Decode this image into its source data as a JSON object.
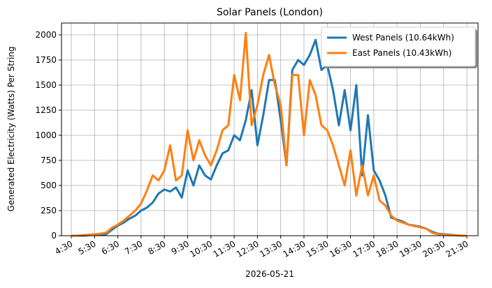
{
  "chart_data": {
    "type": "line",
    "title": "Solar Panels (London)",
    "xlabel": "2026-05-21",
    "ylabel": "Generated Electricity (Watts) Per String",
    "x": [
      4.5,
      4.75,
      5,
      5.25,
      5.5,
      5.75,
      6,
      6.25,
      6.5,
      6.75,
      7,
      7.25,
      7.5,
      7.75,
      8,
      8.25,
      8.5,
      8.75,
      9,
      9.25,
      9.5,
      9.75,
      10,
      10.25,
      10.5,
      10.75,
      11,
      11.25,
      11.5,
      11.75,
      12,
      12.25,
      12.5,
      12.75,
      13,
      13.25,
      13.5,
      13.75,
      14,
      14.25,
      14.5,
      14.75,
      15,
      15.25,
      15.5,
      15.75,
      16,
      16.25,
      16.5,
      16.75,
      17,
      17.25,
      17.5,
      17.75,
      18,
      18.25,
      18.5,
      18.75,
      19,
      19.25,
      19.5,
      19.75,
      20,
      20.25,
      20.5,
      20.75,
      21,
      21.25,
      21.5
    ],
    "series": [
      {
        "name": "West Panels (10.64kWh)",
        "color": "#1f77b4",
        "values": [
          0,
          0,
          0,
          5,
          10,
          10,
          15,
          60,
          100,
          130,
          170,
          200,
          250,
          280,
          330,
          420,
          460,
          440,
          480,
          380,
          650,
          500,
          700,
          600,
          560,
          700,
          820,
          850,
          1000,
          950,
          1150,
          1450,
          900,
          1200,
          1550,
          1550,
          1150,
          700,
          1650,
          1750,
          1700,
          1800,
          1950,
          1650,
          1700,
          1450,
          1100,
          1450,
          1050,
          1500,
          600,
          1200,
          650,
          550,
          400,
          180,
          160,
          140,
          110,
          100,
          90,
          70,
          40,
          20,
          15,
          10,
          5,
          0,
          0
        ]
      },
      {
        "name": "East Panels (10.43kWh)",
        "color": "#ff7f0e",
        "values": [
          0,
          0,
          5,
          10,
          15,
          20,
          30,
          80,
          110,
          150,
          200,
          250,
          320,
          450,
          600,
          550,
          650,
          900,
          550,
          600,
          1050,
          750,
          950,
          800,
          700,
          850,
          1050,
          1100,
          1600,
          1350,
          2020,
          1100,
          1300,
          1600,
          1800,
          1500,
          1300,
          700,
          1600,
          1600,
          1000,
          1550,
          1400,
          1100,
          1050,
          900,
          700,
          500,
          850,
          400,
          700,
          400,
          600,
          350,
          300,
          200,
          150,
          130,
          110,
          95,
          85,
          70,
          30,
          15,
          10,
          5,
          5,
          0,
          0
        ]
      }
    ],
    "xlim": [
      4.08,
      21.98
    ],
    "xticks": [
      {
        "value": 4.5,
        "label": "4:30"
      },
      {
        "value": 5.5,
        "label": "5:30"
      },
      {
        "value": 6.5,
        "label": "6:30"
      },
      {
        "value": 7.5,
        "label": "7:30"
      },
      {
        "value": 8.5,
        "label": "8:30"
      },
      {
        "value": 9.5,
        "label": "9:30"
      },
      {
        "value": 10.5,
        "label": "10:30"
      },
      {
        "value": 11.5,
        "label": "11:30"
      },
      {
        "value": 12.5,
        "label": "12:30"
      },
      {
        "value": 13.5,
        "label": "13:30"
      },
      {
        "value": 14.5,
        "label": "14:30"
      },
      {
        "value": 15.5,
        "label": "15:30"
      },
      {
        "value": 16.5,
        "label": "16:30"
      },
      {
        "value": 17.5,
        "label": "17:30"
      },
      {
        "value": 18.5,
        "label": "18:30"
      },
      {
        "value": 19.5,
        "label": "19:30"
      },
      {
        "value": 20.5,
        "label": "20:30"
      },
      {
        "value": 21.5,
        "label": "21:30"
      }
    ],
    "ylim": [
      0,
      2118
    ],
    "yticks": [
      0,
      250,
      500,
      750,
      1000,
      1250,
      1500,
      1750,
      2000
    ],
    "grid": true,
    "legend": "upper right"
  }
}
